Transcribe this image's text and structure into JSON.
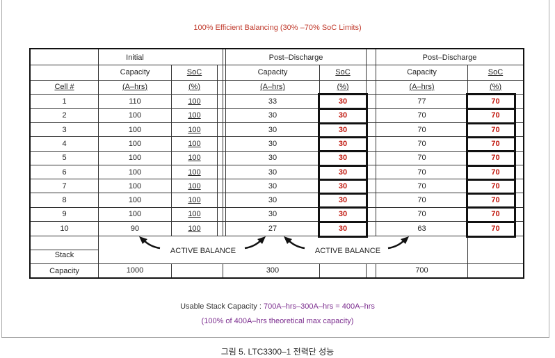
{
  "title": "100% Efficient Balancing (30% –70% SoC Limits)",
  "headers": {
    "initial": "Initial",
    "post1": "Post–Discharge",
    "post2": "Post–Discharge",
    "capacity": "Capacity",
    "soc": "SoC",
    "cell": "Cell #",
    "ahrs": "(A–hrs)",
    "pct": "(%)"
  },
  "rows": [
    {
      "cell": "1",
      "init_cap": "110",
      "init_soc": "100",
      "p1_cap": "33",
      "p1_soc": "30",
      "p2_cap": "77",
      "p2_soc": "70"
    },
    {
      "cell": "2",
      "init_cap": "100",
      "init_soc": "100",
      "p1_cap": "30",
      "p1_soc": "30",
      "p2_cap": "70",
      "p2_soc": "70"
    },
    {
      "cell": "3",
      "init_cap": "100",
      "init_soc": "100",
      "p1_cap": "30",
      "p1_soc": "30",
      "p2_cap": "70",
      "p2_soc": "70"
    },
    {
      "cell": "4",
      "init_cap": "100",
      "init_soc": "100",
      "p1_cap": "30",
      "p1_soc": "30",
      "p2_cap": "70",
      "p2_soc": "70"
    },
    {
      "cell": "5",
      "init_cap": "100",
      "init_soc": "100",
      "p1_cap": "30",
      "p1_soc": "30",
      "p2_cap": "70",
      "p2_soc": "70"
    },
    {
      "cell": "6",
      "init_cap": "100",
      "init_soc": "100",
      "p1_cap": "30",
      "p1_soc": "30",
      "p2_cap": "70",
      "p2_soc": "70"
    },
    {
      "cell": "7",
      "init_cap": "100",
      "init_soc": "100",
      "p1_cap": "30",
      "p1_soc": "30",
      "p2_cap": "70",
      "p2_soc": "70"
    },
    {
      "cell": "8",
      "init_cap": "100",
      "init_soc": "100",
      "p1_cap": "30",
      "p1_soc": "30",
      "p2_cap": "70",
      "p2_soc": "70"
    },
    {
      "cell": "9",
      "init_cap": "100",
      "init_soc": "100",
      "p1_cap": "30",
      "p1_soc": "30",
      "p2_cap": "70",
      "p2_soc": "70"
    },
    {
      "cell": "10",
      "init_cap": "90",
      "init_soc": "100",
      "p1_cap": "27",
      "p1_soc": "30",
      "p2_cap": "63",
      "p2_soc": "70"
    }
  ],
  "stack": {
    "label1": "Stack",
    "label2": "Capacity",
    "initial": "1000",
    "post1": "300",
    "post2": "700"
  },
  "active_balance_1": "ACTIVE BALANCE",
  "active_balance_2": "ACTIVE BALANCE",
  "footer": {
    "line1_prefix": "Usable Stack Capacity : ",
    "line1_highlight": "700A–hrs–300A–hrs = 400A–hrs",
    "line2": "(100% of 400A–hrs theoretical max capacity)"
  },
  "caption": "그림 5. LTC3300–1 전력단 성능",
  "colors": {
    "red": "#c0180e",
    "purple": "#7b2d8e"
  }
}
